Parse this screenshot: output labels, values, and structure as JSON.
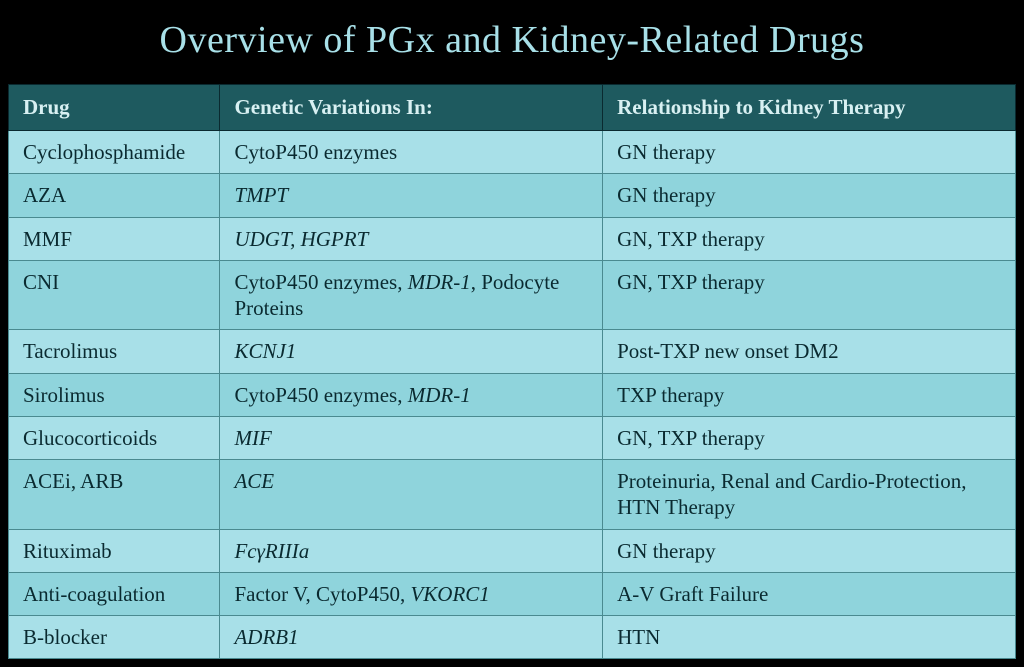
{
  "title": "Overview of PGx and Kidney-Related Drugs",
  "colors": {
    "page_bg": "#000000",
    "title_text": "#a8e0e8",
    "header_bg": "#1e5a5f",
    "header_text": "#d8f0f2",
    "row_bg": "#a8e0e8",
    "row_alt_bg": "#8fd4dc",
    "cell_text": "#0a2a30",
    "cell_border": "#4a8a90"
  },
  "typography": {
    "title_fontsize": 38,
    "header_fontsize": 21,
    "cell_fontsize": 21,
    "font_family": "Georgia, Times New Roman, serif"
  },
  "table": {
    "columns": [
      {
        "key": "drug",
        "label": "Drug",
        "width_pct": 21
      },
      {
        "key": "gene",
        "label": "Genetic Variations In:",
        "width_pct": 38
      },
      {
        "key": "rel",
        "label": "Relationship to Kidney Therapy",
        "width_pct": 41
      }
    ],
    "rows": [
      {
        "drug": "Cyclophosphamide",
        "gene_html": "CytoP450 enzymes",
        "rel": "GN therapy"
      },
      {
        "drug": "AZA",
        "gene_html": "<span class=\"gene-ital\">TMPT</span>",
        "rel": "GN therapy"
      },
      {
        "drug": "MMF",
        "gene_html": "<span class=\"gene-ital\">UDGT, HGPRT</span>",
        "rel": "GN, TXP therapy"
      },
      {
        "drug": "CNI",
        "gene_html": "CytoP450 enzymes, <span class=\"gene-ital\">MDR-1</span>, Podocyte Proteins",
        "rel": "GN, TXP therapy"
      },
      {
        "drug": "Tacrolimus",
        "gene_html": "<span class=\"gene-ital\">KCNJ1</span>",
        "rel": "Post-TXP new onset DM2"
      },
      {
        "drug": "Sirolimus",
        "gene_html": "CytoP450 enzymes, <span class=\"gene-ital\">MDR-1</span>",
        "rel": "TXP therapy"
      },
      {
        "drug": "Glucocorticoids",
        "gene_html": "<span class=\"gene-ital\">MIF</span>",
        "rel": "GN, TXP therapy"
      },
      {
        "drug": "ACEi, ARB",
        "gene_html": "<span class=\"gene-ital\">ACE</span>",
        "rel": "Proteinuria, Renal and Cardio-Protection, HTN Therapy"
      },
      {
        "drug": "Rituximab",
        "gene_html": "<span class=\"gene-ital\">FcγRIIIa</span>",
        "rel": "GN therapy"
      },
      {
        "drug": "Anti-coagulation",
        "gene_html": "Factor V, CytoP450, <span class=\"gene-ital\">VKORC1</span>",
        "rel": "A-V Graft Failure"
      },
      {
        "drug": "B-blocker",
        "gene_html": "<span class=\"gene-ital\">ADRB1</span>",
        "rel": "HTN"
      }
    ]
  }
}
